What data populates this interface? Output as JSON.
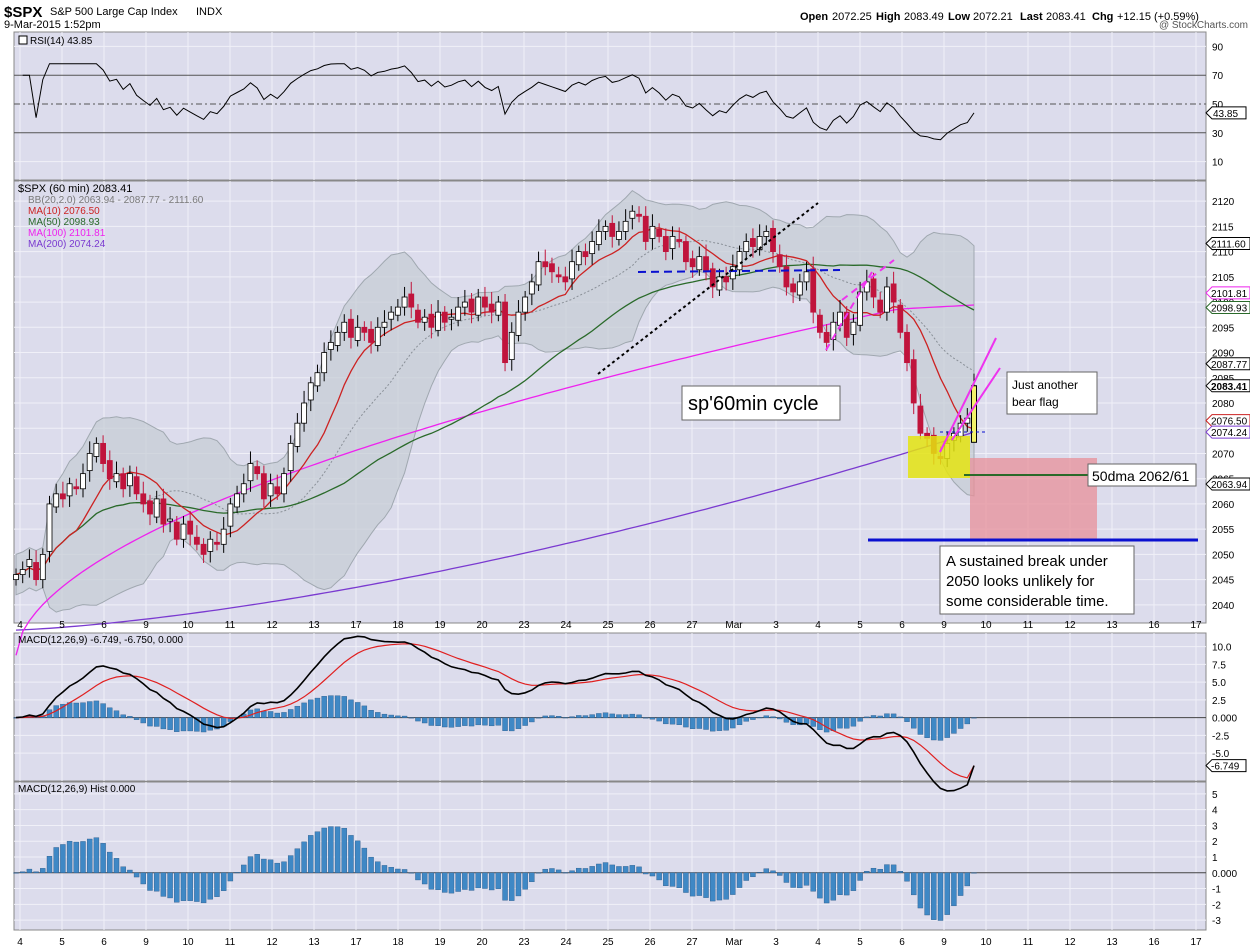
{
  "header": {
    "symbol": "$SPX",
    "name": "S&P 500 Large Cap Index",
    "exchange": "INDX",
    "timestamp": "9-Mar-2015 1:52pm",
    "open_label": "Open",
    "open": "2072.25",
    "high_label": "High",
    "high": "2083.49",
    "low_label": "Low",
    "low": "2072.21",
    "last_label": "Last",
    "last": "2083.41",
    "chg_label": "Chg",
    "chg": "+12.15 (+0.59%)",
    "watermark": "@ StockCharts.com"
  },
  "colors": {
    "panel_bg": "#dcdcec",
    "up": "#000000",
    "down": "#c0143c",
    "ma10": "#cc2222",
    "ma50": "#2a6a2a",
    "ma100": "#ee22ee",
    "ma200": "#7a3ad0",
    "bb_fill": "#c4ccd4",
    "macd_line": "#000000",
    "signal_line": "#e02020",
    "histogram": "#3f88c5",
    "annotation_magenta": "#ee33ee",
    "annotation_blue": "#0a10d0",
    "yellow_box": "#e4e410",
    "red_box": "#e8909a"
  },
  "rsi_panel": {
    "legend": "RSI(14) 43.85",
    "ticks": [
      "90",
      "70",
      "50",
      "30",
      "10"
    ],
    "current": "43.85"
  },
  "price_panel": {
    "legend_title": "$SPX (60 min) 2083.41",
    "legend_bb": "BB(20,2.0) 2063.94 - 2087.77 - 2111.60",
    "legend_ma10": "MA(10) 2076.50",
    "legend_ma50": "MA(50) 2098.93",
    "legend_ma100": "MA(100) 2101.81",
    "legend_ma200": "MA(200) 2074.24",
    "ticks": [
      "2120",
      "2115",
      "2110",
      "2105",
      "2100",
      "2095",
      "2090",
      "2085",
      "2080",
      "2075",
      "2070",
      "2065",
      "2060",
      "2055",
      "2050",
      "2045",
      "2040"
    ],
    "price_tags": [
      "2111.60",
      "2101.81",
      "2098.93",
      "2087.77",
      "2083.41",
      "2076.50",
      "2074.24",
      "2063.94"
    ],
    "annotation_cycle": "sp'60min cycle",
    "annotation_flag_1": "Just another",
    "annotation_flag_2": "bear flag",
    "annotation_50dma": "50dma 2062/61",
    "annotation_break_1": "A sustained break under",
    "annotation_break_2": "2050 looks unlikely for",
    "annotation_break_3": "some considerable time."
  },
  "macd_panel": {
    "legend": "MACD(12,26,9) -6.749, -6.750, 0.000",
    "ticks": [
      "10.0",
      "7.5",
      "5.0",
      "2.5",
      "0.000",
      "-2.5",
      "-5.0"
    ],
    "current": "-6.749"
  },
  "hist_panel": {
    "legend": "MACD(12,26,9) Hist 0.000",
    "ticks": [
      "5",
      "4",
      "3",
      "2",
      "1",
      "0.000",
      "-1",
      "-2",
      "-3"
    ]
  },
  "x_axis_labels": [
    "4",
    "5",
    "6",
    "9",
    "10",
    "11",
    "12",
    "13",
    "17",
    "18",
    "19",
    "20",
    "23",
    "24",
    "25",
    "26",
    "27",
    "Mar",
    "3",
    "4",
    "5",
    "6",
    "9",
    "10",
    "11",
    "12",
    "13",
    "16",
    "17"
  ],
  "chart_data": {
    "type": "candlestick",
    "title": "$SPX (60 min)",
    "x_range": [
      "4-Feb-2015",
      "17-Mar-2015"
    ],
    "ylim": [
      2037,
      2123
    ],
    "close": [
      2046,
      2047,
      2049,
      2045,
      2050,
      2060,
      2062,
      2061,
      2064,
      2063,
      2066,
      2070,
      2072,
      2068,
      2065,
      2066,
      2063,
      2066,
      2062,
      2060,
      2058,
      2061,
      2056,
      2057,
      2053,
      2056,
      2054,
      2052,
      2050,
      2053,
      2052,
      2055,
      2060,
      2062,
      2064,
      2068,
      2066,
      2061,
      2064,
      2062,
      2066,
      2072,
      2076,
      2080,
      2084,
      2086,
      2090,
      2092,
      2094,
      2096,
      2093,
      2095,
      2094,
      2092,
      2095,
      2096,
      2098,
      2099,
      2101,
      2099,
      2096,
      2097,
      2095,
      2098,
      2096,
      2097,
      2099,
      2100,
      2098,
      2101,
      2099,
      2098,
      2100,
      2088,
      2094,
      2098,
      2101,
      2104,
      2108,
      2107,
      2106,
      2105,
      2104,
      2108,
      2110,
      2109,
      2112,
      2114,
      2115,
      2113,
      2114,
      2116,
      2118,
      2117,
      2112,
      2115,
      2113,
      2110,
      2113,
      2112,
      2108,
      2107,
      2109,
      2106,
      2103,
      2105,
      2104,
      2107,
      2110,
      2112,
      2111,
      2113,
      2114,
      2110,
      2107,
      2103,
      2102,
      2104,
      2106,
      2098,
      2094,
      2092,
      2096,
      2098,
      2093,
      2096,
      2102,
      2104,
      2101,
      2098,
      2103,
      2100,
      2094,
      2088,
      2080,
      2074,
      2073,
      2070,
      2069,
      2072,
      2074,
      2076,
      2077,
      2083.41
    ],
    "ma10_last": 2076.5,
    "ma50_last": 2098.93,
    "ma100_last": 2101.81,
    "ma200_last": 2074.24,
    "bb": {
      "lower": 2063.94,
      "mid": 2087.77,
      "upper": 2111.6
    },
    "rsi_last": 43.85,
    "macd_last": -6.749,
    "signal_last": -6.75,
    "hist_last": 0.0
  }
}
